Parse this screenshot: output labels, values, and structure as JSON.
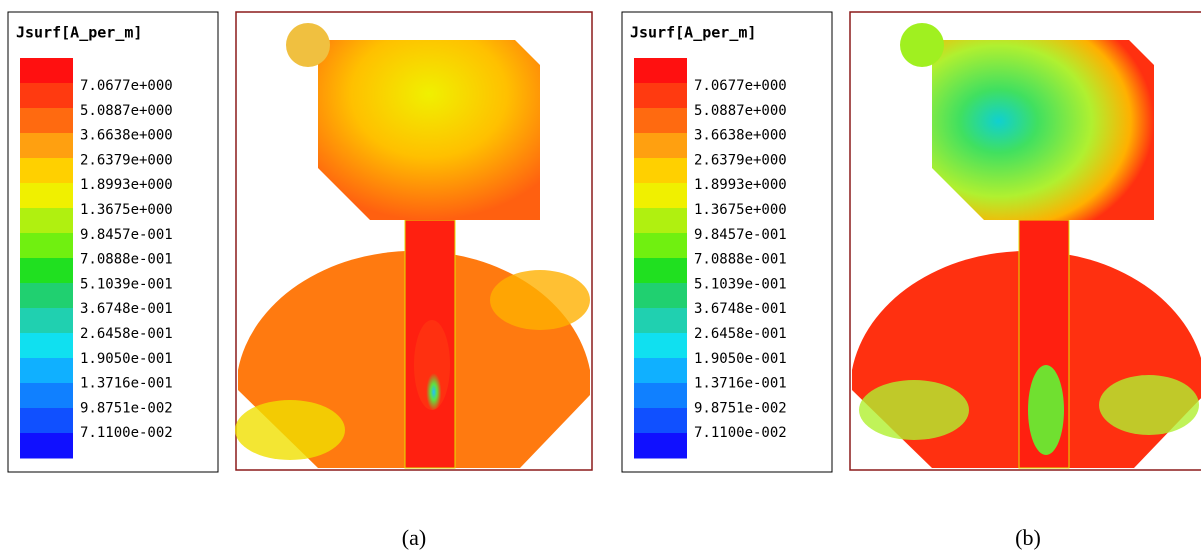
{
  "panels": [
    {
      "legend_title": "Jsurf[A_per_m]",
      "legend_labels": [
        "7.0677e+000",
        "5.0887e+000",
        "3.6638e+000",
        "2.6379e+000",
        "1.8993e+000",
        "1.3675e+000",
        "9.8457e-001",
        "7.0888e-001",
        "5.1039e-001",
        "3.6748e-001",
        "2.6458e-001",
        "1.9050e-001",
        "1.3716e-001",
        "9.8751e-002",
        "7.1100e-002"
      ],
      "caption": "(a)"
    },
    {
      "legend_title": "Jsurf[A_per_m]",
      "legend_labels": [
        "7.0677e+000",
        "5.0887e+000",
        "3.6638e+000",
        "2.6379e+000",
        "1.8993e+000",
        "1.3675e+000",
        "9.8457e-001",
        "7.0888e-001",
        "5.1039e-001",
        "3.6748e-001",
        "2.6458e-001",
        "1.9050e-001",
        "1.3716e-001",
        "9.8751e-002",
        "7.1100e-002"
      ],
      "caption": "(b)"
    }
  ]
}
